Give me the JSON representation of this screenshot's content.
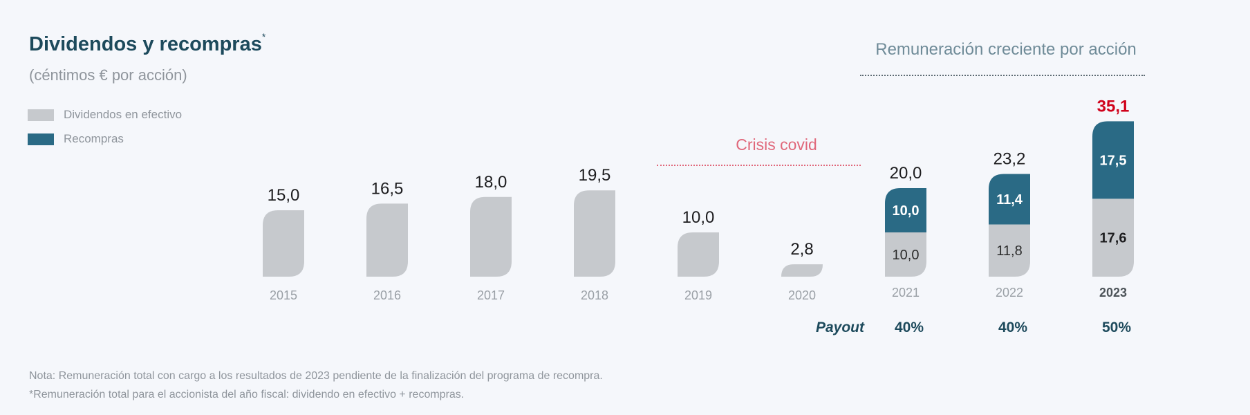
{
  "title": "Dividendos y recompras",
  "title_mark": "*",
  "subtitle": "(céntimos € por acción)",
  "header_right": "Remuneración creciente por acción",
  "covid_label": "Crisis covid",
  "colors": {
    "cash": "#c6c9cd",
    "buyback": "#2a6a85",
    "highlight": "#d0021b",
    "title": "#1d4a5c"
  },
  "payout_title": "Payout",
  "payouts": [
    "40%",
    "40%",
    "50%"
  ],
  "notes": [
    "Nota: Remuneración total con cargo a los resultados de 2023 pendiente de la finalización del programa de recompra.",
    "*Remuneración total para el accionista del año fiscal: dividendo en efectivo + recompras."
  ],
  "chart_data": {
    "type": "bar",
    "stacked": true,
    "categories": [
      "2015",
      "2016",
      "2017",
      "2018",
      "2019",
      "2020",
      "2021",
      "2022",
      "2023"
    ],
    "series": [
      {
        "name": "Dividendos en efectivo",
        "values": [
          15.0,
          16.5,
          18.0,
          19.5,
          10.0,
          2.8,
          10.0,
          11.8,
          17.6
        ]
      },
      {
        "name": "Recompras",
        "values": [
          0,
          0,
          0,
          0,
          0,
          0,
          10.0,
          11.4,
          17.5
        ]
      }
    ],
    "segment_labels": {
      "cash": [
        "",
        "",
        "",
        "",
        "",
        "",
        "10,0",
        "11,8",
        "17,6"
      ],
      "buyback": [
        "",
        "",
        "",
        "",
        "",
        "",
        "10,0",
        "11,4",
        "17,5"
      ]
    },
    "total_labels": [
      "15,0",
      "16,5",
      "18,0",
      "19,5",
      "10,0",
      "2,8",
      "20,0",
      "23,2",
      "35,1"
    ],
    "highlight_category": "2023",
    "legend": [
      "Dividendos en efectivo",
      "Recompras"
    ],
    "legend_position": "top-left",
    "grid": false,
    "title": "Dividendos y recompras",
    "xlabel": "",
    "ylabel": ""
  }
}
